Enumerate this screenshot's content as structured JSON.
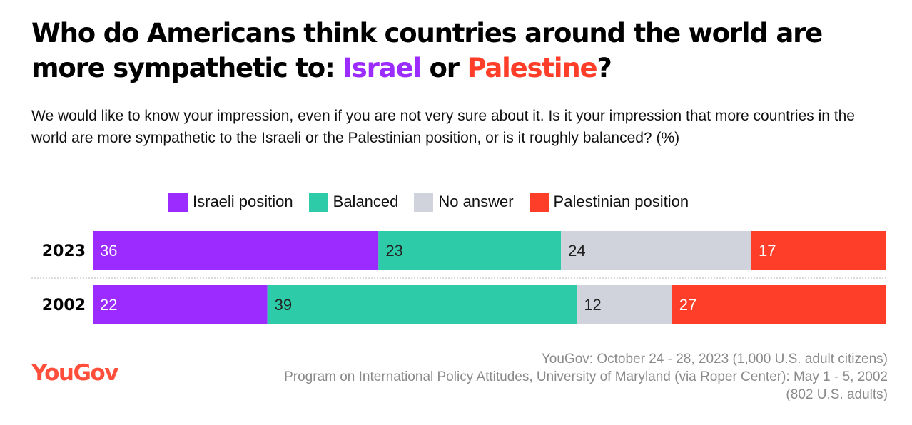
{
  "title": {
    "part1": "Who do Americans think countries around the world are more sympathetic to: ",
    "israel": "Israel",
    "or": " or ",
    "palestine": "Palestine",
    "end": "?"
  },
  "subtitle": "We would like to know your impression, even if you are not very sure about it. Is it your impression that more countries in the world are more sympathetic to the Israeli or the Palestinian position, or is it roughly balanced? (%)",
  "logo": "YouGov",
  "source_lines": [
    "YouGov: October 24 - 28, 2023 (1,000 U.S. adult citizens)",
    "Program on International Policy Attitudes, University of Maryland (via Roper Center): May 1 - 5, 2002",
    "(802 U.S. adults)"
  ],
  "colors": {
    "israel": "#9b2bff",
    "balanced": "#2ecba8",
    "no_answer": "#d0d3dc",
    "palestine": "#ff3e2a",
    "logo": "#ff4e3a"
  },
  "chart_data": {
    "type": "bar",
    "orientation": "horizontal",
    "stacked": true,
    "categories": [
      "2023",
      "2002"
    ],
    "series": [
      {
        "name": "Israeli position",
        "color": "#9b2bff",
        "label_color": "#ffffff",
        "values": [
          36,
          22
        ]
      },
      {
        "name": "Balanced",
        "color": "#2ecba8",
        "label_color": "#222222",
        "values": [
          23,
          39
        ]
      },
      {
        "name": "No answer",
        "color": "#d0d3dc",
        "label_color": "#222222",
        "values": [
          24,
          12
        ]
      },
      {
        "name": "Palestinian position",
        "color": "#ff3e2a",
        "label_color": "#ffffff",
        "values": [
          17,
          27
        ]
      }
    ],
    "xlim": [
      0,
      100
    ],
    "legend": "top",
    "grid": false
  }
}
